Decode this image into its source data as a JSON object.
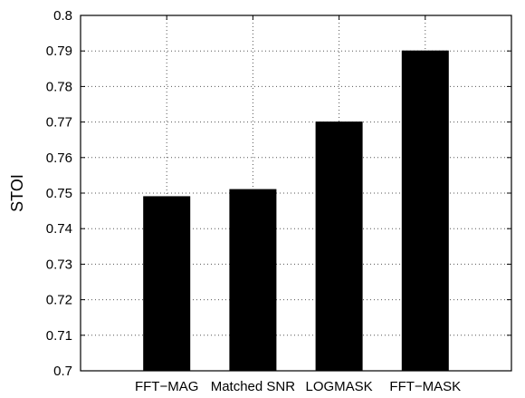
{
  "chart_data": {
    "type": "bar",
    "title": "",
    "xlabel": "",
    "ylabel": "STOI",
    "categories": [
      "FFT−MAG",
      "Matched SNR",
      "LOGMASK",
      "FFT−MASK"
    ],
    "values": [
      0.749,
      0.751,
      0.77,
      0.79
    ],
    "ylim": [
      0.7,
      0.8
    ],
    "yticks": [
      "0.7",
      "0.71",
      "0.72",
      "0.73",
      "0.74",
      "0.75",
      "0.76",
      "0.77",
      "0.78",
      "0.79",
      "0.8"
    ],
    "grid": true,
    "bar_color": "#000000"
  }
}
